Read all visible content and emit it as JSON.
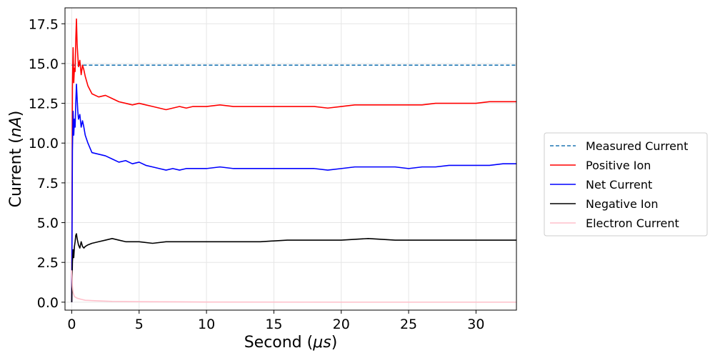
{
  "chart_data": {
    "type": "line",
    "xlabel_prefix": "Second (",
    "xlabel_unit": "μs",
    "xlabel_suffix": ")",
    "ylabel_prefix": "Current (",
    "ylabel_unit": "nA",
    "ylabel_suffix": ")",
    "xlim": [
      -0.5,
      33
    ],
    "ylim": [
      -0.5,
      18.5
    ],
    "xticks": [
      0,
      5,
      10,
      15,
      20,
      25,
      30
    ],
    "yticks": [
      0.0,
      2.5,
      5.0,
      7.5,
      10.0,
      12.5,
      15.0,
      17.5
    ],
    "xtick_labels": [
      "0",
      "5",
      "10",
      "15",
      "20",
      "25",
      "30"
    ],
    "ytick_labels": [
      "0.0",
      "2.5",
      "5.0",
      "7.5",
      "10.0",
      "12.5",
      "15.0",
      "17.5"
    ],
    "grid": true,
    "legend_position": "outside-right",
    "series": [
      {
        "name": "Measured Current",
        "color": "#1f77b4",
        "dashed": true,
        "x": [
          0,
          33
        ],
        "y": [
          14.9,
          14.9
        ]
      },
      {
        "name": "Positive Ion",
        "color": "#ff0000",
        "dashed": false,
        "x": [
          0,
          0.05,
          0.1,
          0.15,
          0.2,
          0.25,
          0.3,
          0.35,
          0.4,
          0.45,
          0.5,
          0.6,
          0.7,
          0.8,
          0.9,
          1.0,
          1.2,
          1.5,
          2.0,
          2.5,
          3.0,
          3.5,
          4.0,
          4.5,
          5.0,
          5.5,
          6.0,
          6.5,
          7.0,
          7.5,
          8.0,
          8.5,
          9.0,
          10.0,
          11.0,
          12.0,
          13.0,
          14.0,
          15.0,
          16.0,
          17.0,
          18.0,
          19.0,
          20.0,
          21.0,
          22.0,
          23.0,
          24.0,
          25.0,
          26.0,
          27.0,
          28.0,
          29.0,
          30.0,
          31.0,
          32.0,
          33.0
        ],
        "y": [
          0,
          13.5,
          16.0,
          13.8,
          14.7,
          14.5,
          16.5,
          17.8,
          16.2,
          15.5,
          14.8,
          15.2,
          14.3,
          14.9,
          14.6,
          14.2,
          13.6,
          13.1,
          12.9,
          13.0,
          12.8,
          12.6,
          12.5,
          12.4,
          12.5,
          12.4,
          12.3,
          12.2,
          12.1,
          12.2,
          12.3,
          12.2,
          12.3,
          12.3,
          12.4,
          12.3,
          12.3,
          12.3,
          12.3,
          12.3,
          12.3,
          12.3,
          12.2,
          12.3,
          12.4,
          12.4,
          12.4,
          12.4,
          12.4,
          12.4,
          12.5,
          12.5,
          12.5,
          12.5,
          12.6,
          12.6,
          12.6
        ]
      },
      {
        "name": "Net Current",
        "color": "#0000ff",
        "dashed": false,
        "x": [
          0,
          0.05,
          0.1,
          0.15,
          0.2,
          0.25,
          0.3,
          0.35,
          0.4,
          0.45,
          0.5,
          0.6,
          0.7,
          0.8,
          0.9,
          1.0,
          1.2,
          1.5,
          2.0,
          2.5,
          3.0,
          3.5,
          4.0,
          4.5,
          5.0,
          5.5,
          6.0,
          6.5,
          7.0,
          7.5,
          8.0,
          8.5,
          9.0,
          10.0,
          11.0,
          12.0,
          13.0,
          14.0,
          15.0,
          16.0,
          17.0,
          18.0,
          19.0,
          20.0,
          21.0,
          22.0,
          23.0,
          24.0,
          25.0,
          26.0,
          27.0,
          28.0,
          29.0,
          30.0,
          31.0,
          32.0,
          33.0
        ],
        "y": [
          0,
          9.5,
          12.0,
          10.5,
          11.5,
          11.0,
          12.5,
          13.7,
          12.8,
          12.0,
          11.5,
          11.8,
          11.0,
          11.4,
          11.0,
          10.5,
          10.0,
          9.4,
          9.3,
          9.2,
          9.0,
          8.8,
          8.9,
          8.7,
          8.8,
          8.6,
          8.5,
          8.4,
          8.3,
          8.4,
          8.3,
          8.4,
          8.4,
          8.4,
          8.5,
          8.4,
          8.4,
          8.4,
          8.4,
          8.4,
          8.4,
          8.4,
          8.3,
          8.4,
          8.5,
          8.5,
          8.5,
          8.5,
          8.4,
          8.5,
          8.5,
          8.6,
          8.6,
          8.6,
          8.6,
          8.7,
          8.7
        ]
      },
      {
        "name": "Negative Ion",
        "color": "#000000",
        "dashed": false,
        "x": [
          0,
          0.05,
          0.1,
          0.15,
          0.2,
          0.25,
          0.3,
          0.35,
          0.4,
          0.5,
          0.6,
          0.7,
          0.8,
          0.9,
          1.0,
          1.2,
          1.5,
          2.0,
          2.5,
          3.0,
          3.5,
          4.0,
          4.5,
          5.0,
          6.0,
          7.0,
          8.0,
          9.0,
          10.0,
          12.0,
          14.0,
          16.0,
          18.0,
          20.0,
          22.0,
          24.0,
          26.0,
          28.0,
          30.0,
          33.0
        ],
        "y": [
          0,
          2.5,
          3.3,
          2.8,
          3.5,
          3.8,
          4.2,
          4.3,
          4.0,
          3.6,
          3.4,
          3.8,
          3.5,
          3.4,
          3.5,
          3.6,
          3.7,
          3.8,
          3.9,
          4.0,
          3.9,
          3.8,
          3.8,
          3.8,
          3.7,
          3.8,
          3.8,
          3.8,
          3.8,
          3.8,
          3.8,
          3.9,
          3.9,
          3.9,
          4.0,
          3.9,
          3.9,
          3.9,
          3.9,
          3.9
        ]
      },
      {
        "name": "Electron Current",
        "color": "#ffc0cb",
        "dashed": false,
        "x": [
          0,
          0.05,
          0.1,
          0.2,
          0.4,
          0.7,
          1.0,
          2.0,
          3.0,
          5.0,
          10.0,
          20.0,
          33.0
        ],
        "y": [
          2.0,
          1.0,
          0.6,
          0.35,
          0.25,
          0.18,
          0.12,
          0.08,
          0.05,
          0.03,
          0.01,
          0.0,
          0.0
        ]
      }
    ]
  }
}
